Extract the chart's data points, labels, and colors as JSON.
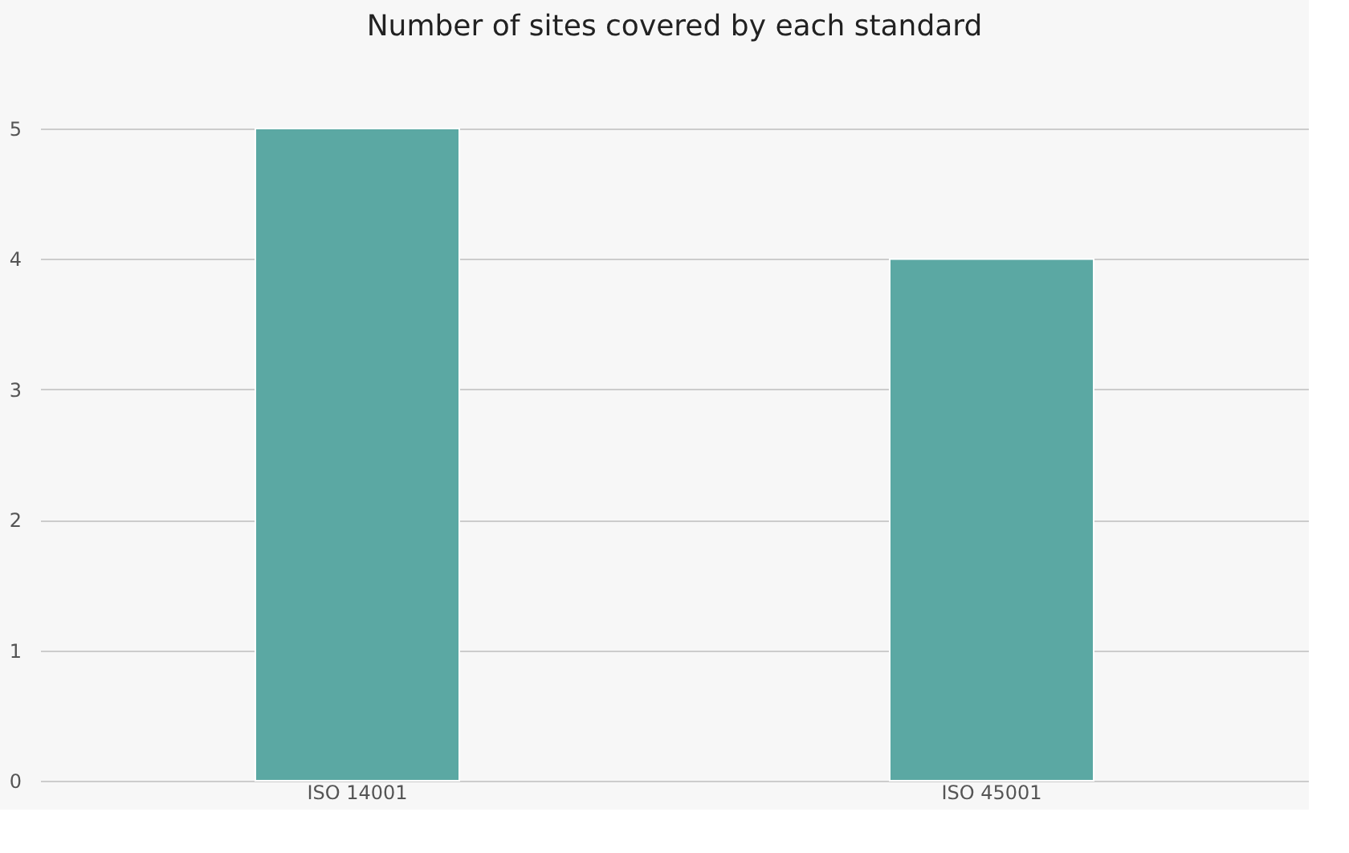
{
  "chart_data": {
    "type": "bar",
    "title": "Number of sites covered by each standard",
    "categories": [
      "ISO 14001",
      "ISO 45001"
    ],
    "values": [
      5,
      4
    ],
    "color": "#5ba8a3",
    "ylim": [
      0,
      5
    ],
    "yticks": [
      0,
      1,
      2,
      3,
      4,
      5
    ],
    "grid": "y"
  }
}
